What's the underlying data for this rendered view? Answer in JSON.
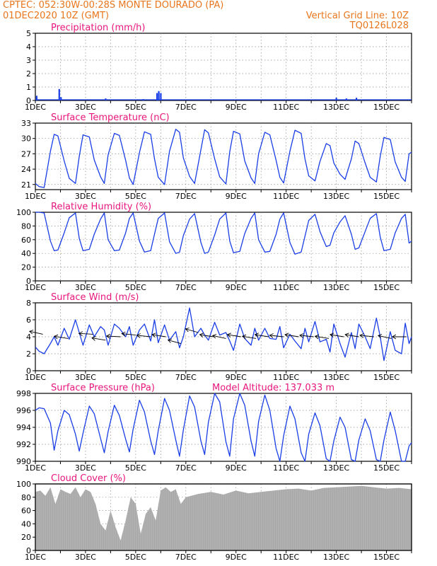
{
  "header": {
    "line1": "CPTEC:  052:30W-00:28S  MONTE DOURADO (PA)",
    "line2": "01DEC2020 10Z (GMT)",
    "grid_note": "Vertical Grid Line: 10Z",
    "run_code": "TQ0126L028"
  },
  "colors": {
    "header": "#e8761c",
    "panel_title": "#e8167c",
    "series": "#1a3ee6",
    "cloud": "#a8a8a8",
    "grid": "#8c8c8c"
  },
  "chart_data": [
    {
      "type": "bar",
      "title": "Precipitation (mm/h)",
      "x_start_day": 1,
      "x_ticks": [
        "1DEC",
        "3DEC",
        "5DEC",
        "7DEC",
        "9DEC",
        "11DEC",
        "13DEC",
        "15DEC"
      ],
      "ylim": [
        0,
        5
      ],
      "yticks": [
        0,
        1,
        2,
        3,
        4,
        5
      ],
      "grid": true,
      "bars": [
        {
          "day": 1.05,
          "value": 0.35
        },
        {
          "day": 1.95,
          "value": 0.85
        },
        {
          "day": 2.02,
          "value": 0.25
        },
        {
          "day": 3.8,
          "value": 0.15
        },
        {
          "day": 5.3,
          "value": 0.1
        },
        {
          "day": 5.85,
          "value": 0.55
        },
        {
          "day": 5.92,
          "value": 0.7
        },
        {
          "day": 6.0,
          "value": 0.55
        },
        {
          "day": 13.0,
          "value": 0.2
        },
        {
          "day": 13.4,
          "value": 0.15
        },
        {
          "day": 13.8,
          "value": 0.2
        }
      ]
    },
    {
      "type": "line",
      "title": "Surface Temperature (nC)",
      "x_start_day": 1,
      "x_ticks": [
        "1DEC",
        "3DEC",
        "5DEC",
        "7DEC",
        "9DEC",
        "11DEC",
        "13DEC",
        "15DEC"
      ],
      "ylim": [
        20,
        33
      ],
      "yticks": [
        21,
        24,
        27,
        30,
        33
      ],
      "grid": true,
      "x": [
        1.0,
        1.15,
        1.35,
        1.6,
        1.75,
        1.9,
        2.15,
        2.35,
        2.6,
        2.75,
        2.9,
        3.15,
        3.35,
        3.6,
        3.75,
        3.9,
        4.15,
        4.35,
        4.6,
        4.75,
        4.9,
        5.15,
        5.35,
        5.6,
        5.75,
        5.9,
        6.15,
        6.35,
        6.6,
        6.75,
        6.9,
        7.15,
        7.35,
        7.6,
        7.75,
        7.9,
        8.15,
        8.35,
        8.6,
        8.75,
        8.9,
        9.15,
        9.35,
        9.6,
        9.75,
        9.9,
        10.15,
        10.35,
        10.6,
        10.75,
        10.9,
        11.15,
        11.35,
        11.6,
        11.75,
        11.9,
        12.15,
        12.35,
        12.6,
        12.75,
        12.9,
        13.15,
        13.35,
        13.6,
        13.75,
        13.9,
        14.15,
        14.35,
        14.6,
        14.75,
        14.9,
        15.15,
        15.35,
        15.6,
        15.75,
        15.9,
        16.0
      ],
      "series": [
        {
          "values": [
            21.2,
            20.6,
            20.4,
            27.5,
            30.8,
            30.5,
            25.6,
            22.2,
            21.2,
            26.5,
            30.7,
            30.3,
            25.8,
            22.5,
            21.2,
            26.8,
            31.0,
            30.6,
            25.7,
            22.3,
            21.0,
            27.2,
            31.3,
            30.8,
            26.0,
            22.4,
            21.0,
            27.5,
            31.8,
            31.2,
            26.2,
            22.6,
            21.2,
            27.8,
            31.7,
            31.1,
            26.0,
            22.5,
            21.1,
            27.4,
            31.4,
            30.9,
            25.6,
            22.3,
            21.2,
            27.0,
            31.2,
            30.7,
            25.7,
            22.4,
            21.3,
            27.5,
            31.6,
            31.0,
            26.0,
            22.7,
            21.7,
            25.5,
            29.0,
            28.6,
            25.2,
            23.0,
            22.0,
            26.0,
            29.5,
            29.0,
            25.2,
            22.4,
            21.5,
            26.5,
            30.2,
            29.8,
            25.4,
            22.4,
            21.6,
            27.0,
            27.3
          ]
        }
      ]
    },
    {
      "type": "line",
      "title": "Relative Humidity (%)",
      "x_start_day": 1,
      "x_ticks": [
        "1DEC",
        "3DEC",
        "5DEC",
        "7DEC",
        "9DEC",
        "11DEC",
        "13DEC",
        "15DEC"
      ],
      "ylim": [
        0,
        100
      ],
      "yticks": [
        0,
        20,
        40,
        60,
        80,
        100
      ],
      "grid": true,
      "x": [
        1.0,
        1.15,
        1.35,
        1.6,
        1.75,
        1.9,
        2.15,
        2.35,
        2.6,
        2.75,
        2.9,
        3.15,
        3.35,
        3.6,
        3.75,
        3.9,
        4.15,
        4.35,
        4.6,
        4.75,
        4.9,
        5.15,
        5.35,
        5.6,
        5.75,
        5.9,
        6.15,
        6.35,
        6.6,
        6.75,
        6.9,
        7.15,
        7.35,
        7.6,
        7.75,
        7.9,
        8.15,
        8.35,
        8.6,
        8.75,
        8.9,
        9.15,
        9.35,
        9.6,
        9.75,
        9.9,
        10.15,
        10.35,
        10.6,
        10.75,
        10.9,
        11.15,
        11.35,
        11.6,
        11.75,
        11.9,
        12.15,
        12.35,
        12.6,
        12.75,
        12.9,
        13.15,
        13.35,
        13.6,
        13.75,
        13.9,
        14.15,
        14.35,
        14.6,
        14.75,
        14.9,
        15.15,
        15.35,
        15.6,
        15.75,
        15.9,
        16.0
      ],
      "series": [
        {
          "values": [
            100,
            100,
            99,
            58,
            44,
            45,
            70,
            92,
            99,
            62,
            44,
            46,
            68,
            90,
            99,
            60,
            44,
            45,
            70,
            91,
            99,
            58,
            42,
            44,
            68,
            91,
            99,
            57,
            40,
            42,
            66,
            90,
            98,
            56,
            40,
            42,
            67,
            90,
            99,
            58,
            41,
            43,
            69,
            91,
            99,
            60,
            42,
            43,
            68,
            90,
            99,
            56,
            39,
            42,
            65,
            88,
            97,
            72,
            50,
            52,
            70,
            86,
            95,
            68,
            46,
            48,
            72,
            91,
            98,
            64,
            44,
            46,
            70,
            91,
            97,
            55,
            58
          ]
        }
      ]
    },
    {
      "type": "line",
      "title": "Surface Wind (m/s)",
      "x_start_day": 1,
      "x_ticks": [
        "1DEC",
        "3DEC",
        "5DEC",
        "7DEC",
        "9DEC",
        "11DEC",
        "13DEC",
        "15DEC"
      ],
      "ylim": [
        0,
        8
      ],
      "yticks": [
        0,
        2,
        4,
        6,
        8
      ],
      "grid": true,
      "x": [
        1.0,
        1.15,
        1.35,
        1.6,
        1.75,
        1.9,
        2.15,
        2.35,
        2.6,
        2.75,
        2.9,
        3.15,
        3.35,
        3.6,
        3.75,
        3.9,
        4.15,
        4.35,
        4.6,
        4.75,
        4.9,
        5.15,
        5.35,
        5.6,
        5.75,
        5.9,
        6.15,
        6.35,
        6.6,
        6.75,
        6.9,
        7.15,
        7.35,
        7.6,
        7.75,
        7.9,
        8.15,
        8.35,
        8.6,
        8.75,
        8.9,
        9.15,
        9.35,
        9.6,
        9.75,
        9.9,
        10.15,
        10.35,
        10.6,
        10.75,
        10.9,
        11.15,
        11.35,
        11.6,
        11.75,
        11.9,
        12.15,
        12.35,
        12.6,
        12.75,
        12.9,
        13.15,
        13.35,
        13.6,
        13.75,
        13.9,
        14.15,
        14.35,
        14.6,
        14.75,
        14.9,
        15.15,
        15.35,
        15.6,
        15.75,
        15.9,
        16.0
      ],
      "series": [
        {
          "values": [
            2.8,
            2.3,
            2.0,
            3.2,
            4.0,
            3.0,
            5.0,
            3.7,
            6.0,
            4.5,
            3.0,
            5.4,
            4.0,
            5.2,
            4.8,
            3.0,
            5.5,
            5.0,
            4.0,
            5.2,
            3.0,
            4.8,
            5.5,
            3.5,
            6.0,
            3.3,
            5.4,
            3.6,
            4.6,
            2.7,
            4.0,
            7.4,
            4.0,
            5.0,
            4.2,
            3.6,
            5.7,
            4.2,
            4.5,
            3.5,
            2.4,
            5.5,
            3.8,
            3.0,
            5.0,
            3.6,
            5.0,
            3.8,
            3.7,
            5.2,
            2.7,
            4.3,
            3.5,
            2.6,
            5.0,
            3.4,
            5.8,
            3.4,
            3.7,
            2.2,
            5.5,
            3.2,
            1.6,
            4.5,
            2.6,
            5.5,
            4.0,
            2.6,
            6.2,
            4.0,
            1.2,
            4.6,
            2.4,
            2.0,
            5.6,
            3.2,
            4.0
          ]
        }
      ],
      "wind_arrows": [
        {
          "day": 1.3,
          "speed": 4.3,
          "dir_deg": 160
        },
        {
          "day": 2.3,
          "speed": 3.8,
          "dir_deg": 165
        },
        {
          "day": 3.3,
          "speed": 4.3,
          "dir_deg": 175
        },
        {
          "day": 3.8,
          "speed": 3.6,
          "dir_deg": 165
        },
        {
          "day": 4.4,
          "speed": 4.0,
          "dir_deg": 175
        },
        {
          "day": 5.0,
          "speed": 4.2,
          "dir_deg": 170
        },
        {
          "day": 5.6,
          "speed": 4.0,
          "dir_deg": 170
        },
        {
          "day": 6.2,
          "speed": 4.0,
          "dir_deg": 165
        },
        {
          "day": 6.8,
          "speed": 3.2,
          "dir_deg": 155
        },
        {
          "day": 7.5,
          "speed": 4.5,
          "dir_deg": 155
        },
        {
          "day": 8.1,
          "speed": 4.0,
          "dir_deg": 165
        },
        {
          "day": 8.6,
          "speed": 3.8,
          "dir_deg": 160
        },
        {
          "day": 9.2,
          "speed": 4.0,
          "dir_deg": 165
        },
        {
          "day": 9.8,
          "speed": 3.8,
          "dir_deg": 165
        },
        {
          "day": 10.3,
          "speed": 4.0,
          "dir_deg": 165
        },
        {
          "day": 10.9,
          "speed": 4.0,
          "dir_deg": 170
        },
        {
          "day": 11.5,
          "speed": 4.0,
          "dir_deg": 165
        },
        {
          "day": 12.1,
          "speed": 4.0,
          "dir_deg": 170
        },
        {
          "day": 12.7,
          "speed": 3.8,
          "dir_deg": 165
        },
        {
          "day": 13.3,
          "speed": 4.0,
          "dir_deg": 165
        },
        {
          "day": 13.9,
          "speed": 4.0,
          "dir_deg": 165
        },
        {
          "day": 14.5,
          "speed": 4.0,
          "dir_deg": 170
        },
        {
          "day": 15.2,
          "speed": 3.8,
          "dir_deg": 160
        },
        {
          "day": 15.8,
          "speed": 4.0,
          "dir_deg": 180
        }
      ]
    },
    {
      "type": "line",
      "title": "Surface Pressure (hPa)",
      "annotation": "Model Altitude: 137.033 m",
      "x_start_day": 1,
      "x_ticks": [
        "1DEC",
        "3DEC",
        "5DEC",
        "7DEC",
        "9DEC",
        "11DEC",
        "13DEC",
        "15DEC"
      ],
      "ylim": [
        990,
        998
      ],
      "yticks": [
        990,
        992,
        994,
        996,
        998
      ],
      "grid": true,
      "x": [
        1.0,
        1.15,
        1.35,
        1.6,
        1.75,
        1.9,
        2.15,
        2.35,
        2.6,
        2.75,
        2.9,
        3.15,
        3.35,
        3.6,
        3.75,
        3.9,
        4.15,
        4.35,
        4.6,
        4.75,
        4.9,
        5.15,
        5.35,
        5.6,
        5.75,
        5.9,
        6.15,
        6.35,
        6.6,
        6.75,
        6.9,
        7.15,
        7.35,
        7.6,
        7.75,
        7.9,
        8.15,
        8.35,
        8.6,
        8.75,
        8.9,
        9.15,
        9.35,
        9.6,
        9.75,
        9.9,
        10.15,
        10.35,
        10.6,
        10.75,
        10.9,
        11.15,
        11.35,
        11.6,
        11.75,
        11.9,
        12.15,
        12.35,
        12.6,
        12.75,
        12.9,
        13.15,
        13.35,
        13.6,
        13.75,
        13.9,
        14.15,
        14.35,
        14.6,
        14.75,
        14.9,
        15.15,
        15.35,
        15.6,
        15.75,
        15.9,
        16.0
      ],
      "series": [
        {
          "values": [
            996.0,
            996.3,
            996.2,
            994.5,
            991.3,
            993.6,
            996.0,
            995.5,
            993.2,
            991.2,
            993.3,
            996.5,
            995.6,
            992.7,
            991.0,
            993.5,
            996.6,
            995.4,
            992.6,
            991.1,
            993.8,
            997.2,
            995.8,
            992.4,
            990.8,
            993.6,
            997.4,
            996.0,
            992.5,
            990.6,
            993.7,
            997.7,
            996.4,
            992.4,
            990.8,
            994.6,
            998.2,
            997.0,
            992.3,
            990.6,
            995.0,
            998.5,
            996.6,
            992.4,
            990.6,
            994.7,
            997.8,
            996.0,
            991.5,
            990.0,
            993.0,
            996.5,
            995.0,
            991.0,
            990.0,
            993.2,
            995.7,
            994.2,
            990.3,
            990.0,
            992.4,
            995.2,
            994.0,
            990.2,
            990.0,
            992.5,
            995.0,
            993.6,
            990.2,
            990.0,
            992.5,
            995.8,
            993.6,
            990.0,
            990.0,
            991.8,
            992.2
          ]
        }
      ]
    },
    {
      "type": "area",
      "title": "Cloud Cover (%)",
      "x_start_day": 1,
      "x_ticks": [
        "1DEC",
        "3DEC",
        "5DEC",
        "7DEC",
        "9DEC",
        "11DEC",
        "13DEC",
        "15DEC"
      ],
      "ylim": [
        0,
        100
      ],
      "yticks": [
        0,
        20,
        40,
        60,
        80,
        100
      ],
      "grid": true,
      "x": [
        1.0,
        1.2,
        1.4,
        1.6,
        1.8,
        2.0,
        2.2,
        2.4,
        2.6,
        2.8,
        3.0,
        3.2,
        3.4,
        3.6,
        3.8,
        4.0,
        4.2,
        4.4,
        4.6,
        4.8,
        5.0,
        5.2,
        5.4,
        5.6,
        5.8,
        6.0,
        6.2,
        6.4,
        6.6,
        6.8,
        7.0,
        7.5,
        8.0,
        8.5,
        9.0,
        9.5,
        10.0,
        10.5,
        11.0,
        11.5,
        12.0,
        12.5,
        13.0,
        13.5,
        14.0,
        14.5,
        15.0,
        15.5,
        16.0
      ],
      "series": [
        {
          "values": [
            88,
            90,
            82,
            95,
            70,
            92,
            88,
            85,
            95,
            80,
            92,
            88,
            70,
            40,
            30,
            60,
            35,
            15,
            45,
            80,
            70,
            25,
            55,
            65,
            45,
            90,
            95,
            88,
            92,
            70,
            80,
            85,
            88,
            84,
            90,
            86,
            88,
            90,
            92,
            93,
            90,
            94,
            95,
            96,
            97,
            95,
            93,
            94,
            92
          ]
        }
      ]
    }
  ]
}
